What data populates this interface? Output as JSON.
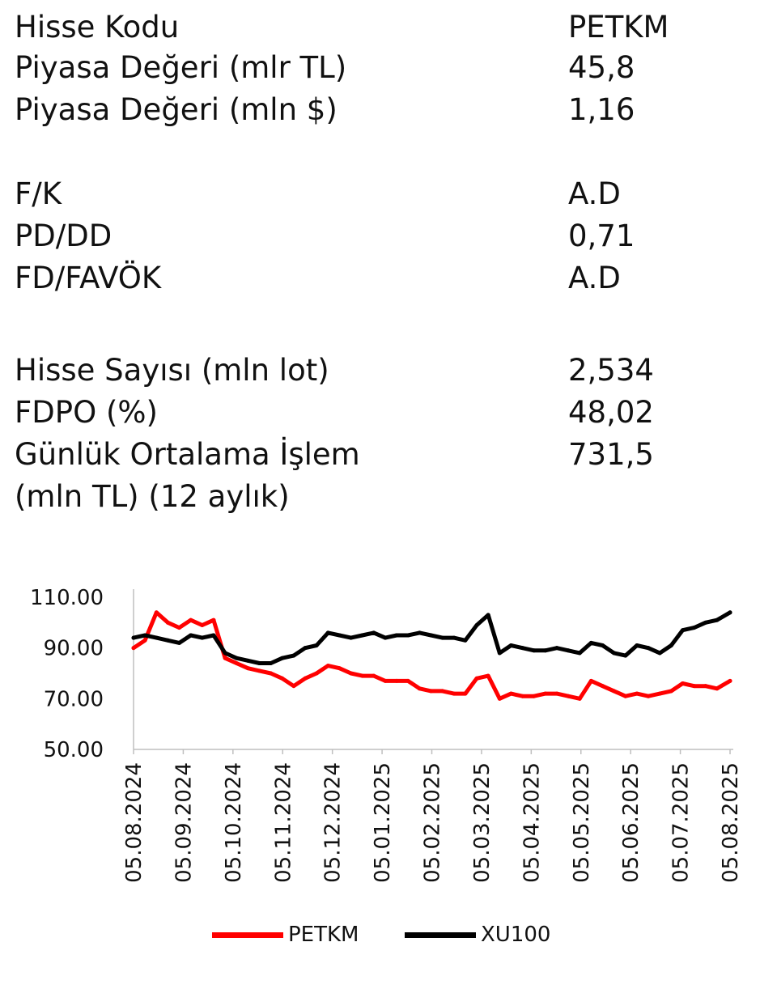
{
  "info_rows": [
    {
      "label": "Hisse Kodu",
      "value": "PETKM"
    },
    {
      "label": "Piyasa Değeri (mlr TL)",
      "value": "45,8"
    },
    {
      "label": "Piyasa Değeri (mln $)",
      "value": "1,16"
    },
    {
      "label": "F/K",
      "value": "A.D"
    },
    {
      "label": "PD/DD",
      "value": "0,71"
    },
    {
      "label": "FD/FAVÖK",
      "value": "A.D"
    },
    {
      "label": "Hisse Sayısı (mln lot)",
      "value": "2,534"
    },
    {
      "label": "FDPO (%)",
      "value": "48,02"
    },
    {
      "label": "Günlük Ortalama İşlem",
      "value": "731,5"
    },
    {
      "label": "(mln TL) (12 aylık)",
      "value": ""
    }
  ],
  "chart_data": {
    "type": "line",
    "title": "",
    "xlabel": "",
    "ylabel": "",
    "ylim": [
      50,
      110
    ],
    "yticks": [
      "50.00",
      "70.00",
      "90.00",
      "110.00"
    ],
    "x_tick_labels": [
      "05.08.2024",
      "05.09.2024",
      "05.10.2024",
      "05.11.2024",
      "05.12.2024",
      "05.01.2025",
      "05.02.2025",
      "05.03.2025",
      "05.04.2025",
      "05.05.2025",
      "05.06.2025",
      "05.07.2025",
      "05.08.2025"
    ],
    "legend_position": "bottom",
    "grid": false,
    "series": [
      {
        "name": "PETKM",
        "color": "#ff0000",
        "x": [
          "2024-08-05",
          "2024-08-12",
          "2024-08-19",
          "2024-08-26",
          "2024-09-02",
          "2024-09-09",
          "2024-09-16",
          "2024-09-23",
          "2024-09-30",
          "2024-10-07",
          "2024-10-14",
          "2024-10-21",
          "2024-10-28",
          "2024-11-04",
          "2024-11-11",
          "2024-11-18",
          "2024-11-25",
          "2024-12-02",
          "2024-12-09",
          "2024-12-16",
          "2024-12-23",
          "2024-12-30",
          "2025-01-06",
          "2025-01-13",
          "2025-01-20",
          "2025-01-27",
          "2025-02-03",
          "2025-02-10",
          "2025-02-17",
          "2025-02-24",
          "2025-03-03",
          "2025-03-10",
          "2025-03-17",
          "2025-03-24",
          "2025-03-31",
          "2025-04-07",
          "2025-04-14",
          "2025-04-21",
          "2025-04-28",
          "2025-05-05",
          "2025-05-12",
          "2025-05-19",
          "2025-05-26",
          "2025-06-02",
          "2025-06-09",
          "2025-06-16",
          "2025-06-23",
          "2025-06-30",
          "2025-07-07",
          "2025-07-14",
          "2025-07-21",
          "2025-07-28",
          "2025-08-05"
        ],
        "values": [
          90,
          93,
          104,
          100,
          98,
          101,
          99,
          101,
          86,
          84,
          82,
          81,
          80,
          78,
          75,
          78,
          80,
          83,
          82,
          80,
          79,
          79,
          77,
          77,
          77,
          74,
          73,
          73,
          72,
          72,
          78,
          79,
          70,
          72,
          71,
          71,
          72,
          72,
          71,
          70,
          77,
          75,
          73,
          71,
          72,
          71,
          72,
          73,
          76,
          75,
          75,
          74,
          77
        ]
      },
      {
        "name": "XU100",
        "color": "#000000",
        "x": [
          "2024-08-05",
          "2024-08-12",
          "2024-08-19",
          "2024-08-26",
          "2024-09-02",
          "2024-09-09",
          "2024-09-16",
          "2024-09-23",
          "2024-09-30",
          "2024-10-07",
          "2024-10-14",
          "2024-10-21",
          "2024-10-28",
          "2024-11-04",
          "2024-11-11",
          "2024-11-18",
          "2024-11-25",
          "2024-12-02",
          "2024-12-09",
          "2024-12-16",
          "2024-12-23",
          "2024-12-30",
          "2025-01-06",
          "2025-01-13",
          "2025-01-20",
          "2025-01-27",
          "2025-02-03",
          "2025-02-10",
          "2025-02-17",
          "2025-02-24",
          "2025-03-03",
          "2025-03-10",
          "2025-03-17",
          "2025-03-24",
          "2025-03-31",
          "2025-04-07",
          "2025-04-14",
          "2025-04-21",
          "2025-04-28",
          "2025-05-05",
          "2025-05-12",
          "2025-05-19",
          "2025-05-26",
          "2025-06-02",
          "2025-06-09",
          "2025-06-16",
          "2025-06-23",
          "2025-06-30",
          "2025-07-07",
          "2025-07-14",
          "2025-07-21",
          "2025-07-28",
          "2025-08-05"
        ],
        "values": [
          94,
          95,
          94,
          93,
          92,
          95,
          94,
          95,
          88,
          86,
          85,
          84,
          84,
          86,
          87,
          90,
          91,
          96,
          95,
          94,
          95,
          96,
          94,
          95,
          95,
          96,
          95,
          94,
          94,
          93,
          99,
          103,
          88,
          91,
          90,
          89,
          89,
          90,
          89,
          88,
          92,
          91,
          88,
          87,
          91,
          90,
          88,
          91,
          97,
          98,
          100,
          101,
          104
        ]
      }
    ]
  }
}
